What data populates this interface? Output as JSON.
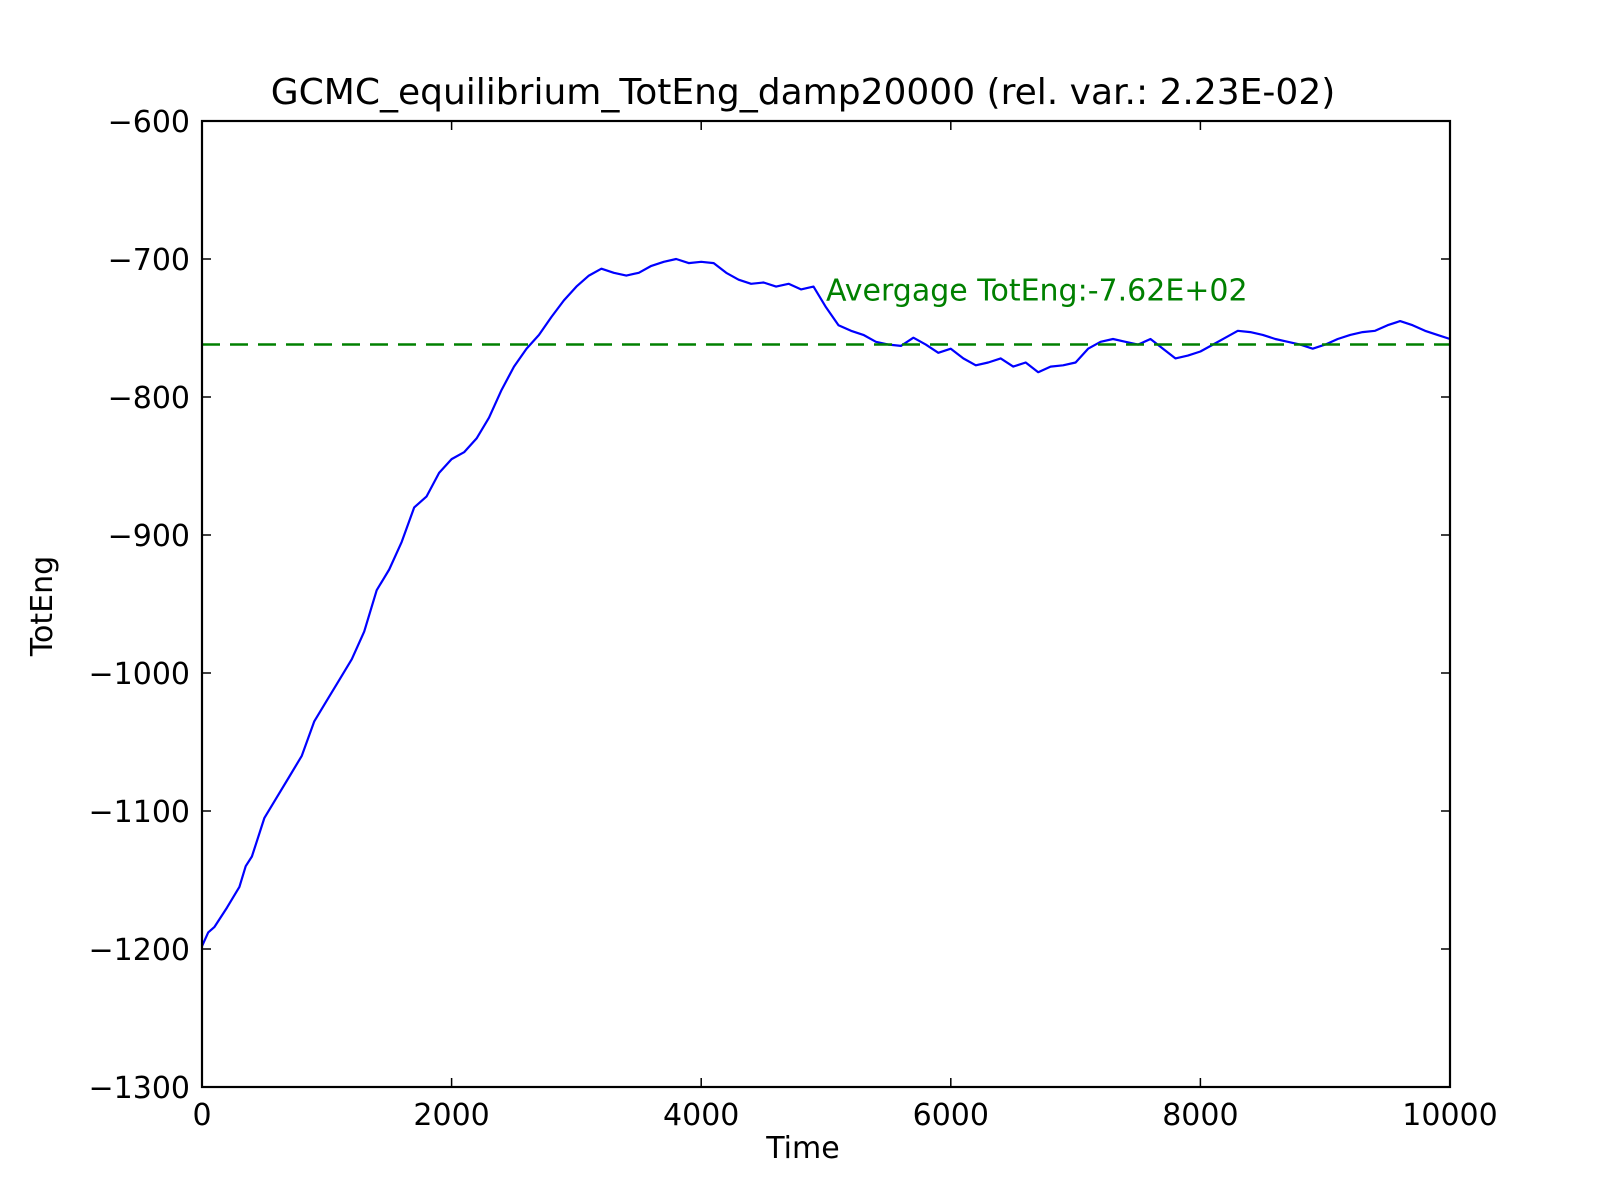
{
  "chart_data": {
    "type": "line",
    "title": "GCMC_equilibrium_TotEng_damp20000 (rel. var.: 2.23E-02)",
    "xlabel": "Time",
    "ylabel": "TotEng",
    "xlim": [
      0,
      10000
    ],
    "ylim": [
      -1300,
      -600
    ],
    "xticks": [
      0,
      2000,
      4000,
      6000,
      8000,
      10000
    ],
    "xtick_labels": [
      "0",
      "2000",
      "4000",
      "6000",
      "8000",
      "10000"
    ],
    "yticks": [
      -600,
      -700,
      -800,
      -900,
      -1000,
      -1100,
      -1200,
      -1300
    ],
    "ytick_labels": [
      "−600",
      "−700",
      "−800",
      "−900",
      "−1000",
      "−1100",
      "−1200",
      "−1300"
    ],
    "grid": false,
    "series": [
      {
        "color": "#0000ff",
        "style": "solid",
        "x": [
          0,
          50,
          100,
          200,
          300,
          350,
          400,
          500,
          600,
          700,
          800,
          900,
          1000,
          1100,
          1200,
          1300,
          1400,
          1500,
          1600,
          1700,
          1800,
          1900,
          2000,
          2100,
          2200,
          2300,
          2400,
          2500,
          2600,
          2700,
          2800,
          2900,
          3000,
          3100,
          3200,
          3300,
          3400,
          3500,
          3600,
          3700,
          3800,
          3900,
          4000,
          4100,
          4200,
          4300,
          4400,
          4500,
          4600,
          4700,
          4800,
          4900,
          5000,
          5100,
          5200,
          5300,
          5400,
          5500,
          5600,
          5700,
          5800,
          5900,
          6000,
          6100,
          6200,
          6300,
          6400,
          6500,
          6600,
          6700,
          6800,
          6900,
          7000,
          7100,
          7200,
          7300,
          7400,
          7500,
          7600,
          7700,
          7800,
          7900,
          8000,
          8100,
          8200,
          8300,
          8400,
          8500,
          8600,
          8700,
          8800,
          8900,
          9000,
          9100,
          9200,
          9300,
          9400,
          9500,
          9600,
          9700,
          9800,
          9900,
          10000
        ],
        "y": [
          -1198,
          -1188,
          -1184,
          -1170,
          -1155,
          -1140,
          -1133,
          -1105,
          -1090,
          -1075,
          -1060,
          -1035,
          -1020,
          -1005,
          -990,
          -970,
          -940,
          -925,
          -905,
          -880,
          -872,
          -855,
          -845,
          -840,
          -830,
          -815,
          -795,
          -778,
          -765,
          -755,
          -742,
          -730,
          -720,
          -712,
          -707,
          -710,
          -712,
          -710,
          -705,
          -702,
          -700,
          -703,
          -702,
          -703,
          -710,
          -715,
          -718,
          -717,
          -720,
          -718,
          -722,
          -720,
          -735,
          -748,
          -752,
          -755,
          -760,
          -762,
          -763,
          -757,
          -762,
          -768,
          -765,
          -772,
          -777,
          -775,
          -772,
          -778,
          -775,
          -782,
          -778,
          -777,
          -775,
          -765,
          -760,
          -758,
          -760,
          -762,
          -758,
          -765,
          -772,
          -770,
          -767,
          -762,
          -757,
          -752,
          -753,
          -755,
          -758,
          -760,
          -762,
          -765,
          -762,
          -758,
          -755,
          -753,
          -752,
          -748,
          -745,
          -748,
          -752,
          -755,
          -758
        ]
      }
    ],
    "reference_line": {
      "y": -762,
      "color": "#008000",
      "style": "dashed"
    },
    "annotation": {
      "text": "Avergage TotEng:-7.62E+02",
      "x": 5000,
      "y": -722,
      "color": "#008000"
    }
  }
}
